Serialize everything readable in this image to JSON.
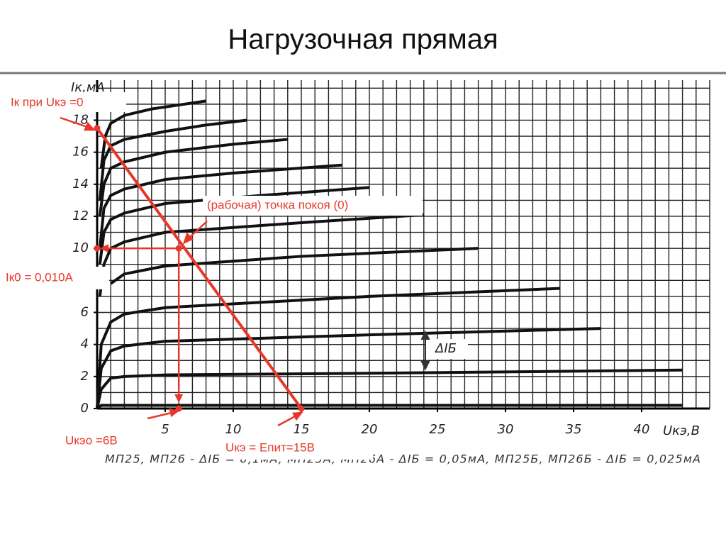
{
  "title": "Нагрузочная прямая",
  "chart_data": {
    "type": "line",
    "x_label": "Uкэ,В",
    "y_label": "Iк,мА",
    "xlim": [
      0,
      45
    ],
    "ylim": [
      0,
      20.5
    ],
    "xticks": [
      5,
      10,
      15,
      20,
      25,
      30,
      35,
      40
    ],
    "yticks": [
      0,
      2,
      4,
      6,
      10,
      12,
      14,
      16,
      18
    ],
    "grid": true,
    "series": [
      {
        "color": "#111",
        "x": [
          0,
          0.3,
          1,
          5,
          43
        ],
        "values": [
          0,
          0.2,
          0.2,
          0.2,
          0.2
        ]
      },
      {
        "color": "#111",
        "x": [
          0,
          0.3,
          1,
          2,
          5,
          20,
          43
        ],
        "values": [
          0,
          1.2,
          1.9,
          2.0,
          2.1,
          2.2,
          2.4
        ]
      },
      {
        "color": "#111",
        "x": [
          0,
          0.3,
          1,
          2,
          5,
          20,
          37
        ],
        "values": [
          0,
          2.5,
          3.6,
          3.9,
          4.2,
          4.6,
          5.0
        ]
      },
      {
        "color": "#111",
        "x": [
          0,
          0.3,
          1,
          2,
          5,
          20,
          34
        ],
        "values": [
          0,
          4,
          5.4,
          5.9,
          6.3,
          7.0,
          7.5
        ]
      },
      {
        "color": "#111",
        "x": [
          1,
          2,
          5,
          15,
          28
        ],
        "values": [
          7.8,
          8.4,
          8.9,
          9.5,
          10.0
        ]
      },
      {
        "color": "#111",
        "x": [
          0.2,
          0.5,
          1,
          2,
          5,
          15,
          24
        ],
        "values": [
          7,
          9,
          10,
          10.4,
          11,
          11.6,
          12.1
        ]
      },
      {
        "color": "#111",
        "x": [
          0.2,
          0.5,
          1,
          2,
          5,
          12,
          20
        ],
        "values": [
          9,
          11,
          11.8,
          12.2,
          12.8,
          13.3,
          13.8
        ]
      },
      {
        "color": "#111",
        "x": [
          0.2,
          0.5,
          1,
          2,
          5,
          10,
          18
        ],
        "values": [
          10,
          12.5,
          13.3,
          13.7,
          14.3,
          14.7,
          15.2
        ]
      },
      {
        "color": "#111",
        "x": [
          0.2,
          0.5,
          1,
          2,
          5,
          10,
          14
        ],
        "values": [
          12,
          14,
          15,
          15.4,
          16,
          16.5,
          16.8
        ]
      },
      {
        "color": "#111",
        "x": [
          0.2,
          0.5,
          1,
          2,
          5,
          8,
          11
        ],
        "values": [
          13,
          15.5,
          16.4,
          16.8,
          17.3,
          17.7,
          18.0
        ]
      },
      {
        "color": "#111",
        "x": [
          0.3,
          0.6,
          1,
          2,
          4,
          8
        ],
        "values": [
          15,
          17,
          17.8,
          18.3,
          18.7,
          19.2
        ]
      },
      {
        "color": "#e8372a",
        "x": [
          0,
          15
        ],
        "values": [
          17.5,
          0
        ]
      }
    ],
    "points": {
      "color": "#e8372a",
      "x": [
        0,
        6,
        0,
        6,
        15
      ],
      "values": [
        17.5,
        10,
        10,
        0,
        0
      ]
    },
    "annotations": [
      "Iк при Uкэ =0",
      "(рабочая) точка покоя (0)",
      "Iк0 = 0,010А",
      "Uкэо =6В",
      "Uкэ = Епит=15В"
    ],
    "delta_label": "ΔIБ",
    "caption": "МП25, МП26 - ΔIБ = 0,1мА, МП25А, МП26А - ΔIБ = 0,05мА, МП25Б, МП26Б - ΔIБ = 0,025мА"
  }
}
